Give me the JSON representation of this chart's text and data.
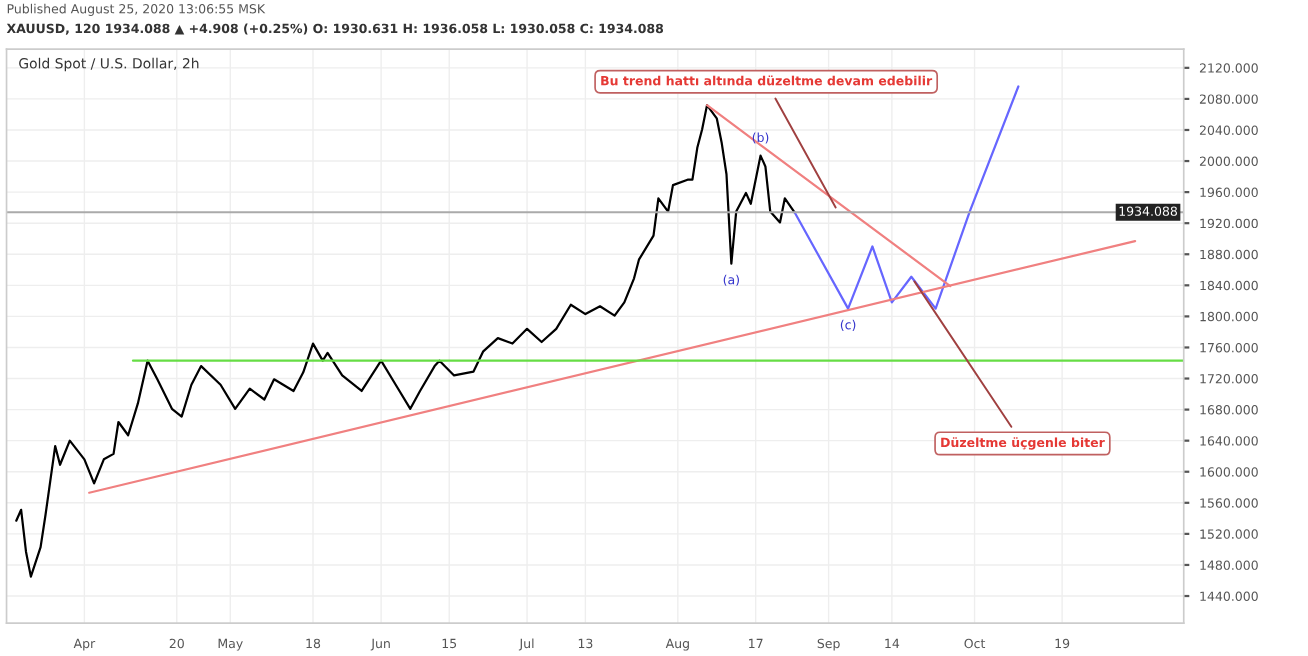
{
  "chart_data": {
    "type": "line",
    "title": "Gold Spot / U.S. Dollar, 2h",
    "subtitle": "XAUUSD, 120 1934.088 ▲ +4.908 (+0.25%) O: 1930.631 H: 1936.058 L: 1930.058 C: 1934.088",
    "annotations": [
      "Published August 25, 2020 13:06:55 MSK",
      {
        "text": "Bu trend hattı altında düzeltme devam edebilir",
        "x": "2020-09-03",
        "y": 1934
      },
      {
        "text": "Düzeltme üçgenle biter",
        "x": "2020-09-18",
        "y": 1851
      },
      {
        "text": "(a)",
        "x": "2020-08-12",
        "y": 1868
      },
      {
        "text": "(b)",
        "x": "2020-08-18",
        "y": 2007
      },
      {
        "text": "(c)",
        "x": "2020-09-05",
        "y": 1810
      }
    ],
    "series": [
      {
        "color": "#000000",
        "x": [
          "2020-03-18",
          "2020-03-19",
          "2020-03-20",
          "2020-03-21",
          "2020-03-23",
          "2020-03-24",
          "2020-03-26",
          "2020-03-27",
          "2020-03-29",
          "2020-04-01",
          "2020-04-03",
          "2020-04-05",
          "2020-04-07",
          "2020-04-08",
          "2020-04-10",
          "2020-04-12",
          "2020-04-14",
          "2020-04-16",
          "2020-04-19",
          "2020-04-21",
          "2020-04-23",
          "2020-04-25",
          "2020-04-29",
          "2020-05-02",
          "2020-05-05",
          "2020-05-08",
          "2020-05-10",
          "2020-05-14",
          "2020-05-16",
          "2020-05-18",
          "2020-05-20",
          "2020-05-21",
          "2020-05-24",
          "2020-05-28",
          "2020-06-01",
          "2020-06-04",
          "2020-06-07",
          "2020-06-09",
          "2020-06-12",
          "2020-06-13",
          "2020-06-16",
          "2020-06-20",
          "2020-06-22",
          "2020-06-25",
          "2020-06-28",
          "2020-07-01",
          "2020-07-04",
          "2020-07-07",
          "2020-07-10",
          "2020-07-13",
          "2020-07-16",
          "2020-07-19",
          "2020-07-21",
          "2020-07-23",
          "2020-07-24",
          "2020-07-27",
          "2020-07-28",
          "2020-07-30",
          "2020-07-31",
          "2020-08-03",
          "2020-08-04",
          "2020-08-05",
          "2020-08-06",
          "2020-08-07",
          "2020-08-09",
          "2020-08-10",
          "2020-08-11",
          "2020-08-12",
          "2020-08-13",
          "2020-08-15",
          "2020-08-16",
          "2020-08-18",
          "2020-08-19",
          "2020-08-20",
          "2020-08-22",
          "2020-08-23",
          "2020-08-25"
        ],
        "values": [
          1537,
          1551,
          1497,
          1465,
          1503,
          1544,
          1633,
          1609,
          1640,
          1616,
          1585,
          1616,
          1623,
          1664,
          1647,
          1688,
          1743,
          1719,
          1681,
          1671,
          1712,
          1736,
          1712,
          1681,
          1707,
          1693,
          1719,
          1704,
          1728,
          1765,
          1743,
          1753,
          1724,
          1704,
          1743,
          1712,
          1681,
          1704,
          1736,
          1743,
          1724,
          1729,
          1755,
          1772,
          1765,
          1784,
          1767,
          1784,
          1815,
          1803,
          1813,
          1801,
          1818,
          1849,
          1873,
          1904,
          1952,
          1935,
          1969,
          1976,
          1976,
          2017,
          2041,
          2072,
          2055,
          2024,
          1983,
          1868,
          1935,
          1959,
          1945,
          2007,
          1993,
          1935,
          1921,
          1952,
          1934
        ]
      },
      {
        "color": "#6666ff",
        "x": [
          "2020-08-25",
          "2020-09-05",
          "2020-09-10",
          "2020-09-14",
          "2020-09-18",
          "2020-09-23",
          "2020-09-30",
          "2020-10-10"
        ],
        "values": [
          1934,
          1810,
          1890,
          1818,
          1851,
          1810,
          1935,
          2096
        ]
      },
      {
        "color": "#f08080",
        "x": [
          "2020-08-07",
          "2020-09-26"
        ],
        "values": [
          2072,
          1839
        ]
      },
      {
        "color": "#f08080",
        "x": [
          "2020-04-02",
          "2020-11-03"
        ],
        "values": [
          1573,
          1897
        ]
      },
      {
        "color": "#66dd44",
        "x": [
          "2020-04-11",
          "2020-11-13"
        ],
        "values": [
          1743,
          1743
        ]
      }
    ],
    "ref_lines": [
      {
        "axis": "y",
        "value": 1934.088,
        "label": "1934.088",
        "color": "#aaaaaa"
      }
    ],
    "xlim": [
      "2020-03-16",
      "2020-11-13"
    ],
    "xticks": [
      {
        "value": "2020-04-01",
        "label": "Apr"
      },
      {
        "value": "2020-04-20",
        "label": "20"
      },
      {
        "value": "2020-05-01",
        "label": "May"
      },
      {
        "value": "2020-05-18",
        "label": "18"
      },
      {
        "value": "2020-06-01",
        "label": "Jun"
      },
      {
        "value": "2020-06-15",
        "label": "15"
      },
      {
        "value": "2020-07-01",
        "label": "Jul"
      },
      {
        "value": "2020-07-13",
        "label": "13"
      },
      {
        "value": "2020-08-01",
        "label": "Aug"
      },
      {
        "value": "2020-08-17",
        "label": "17"
      },
      {
        "value": "2020-09-01",
        "label": "Sep"
      },
      {
        "value": "2020-09-14",
        "label": "14"
      },
      {
        "value": "2020-10-01",
        "label": "Oct"
      },
      {
        "value": "2020-10-19",
        "label": "19"
      }
    ],
    "ylim": [
      1405,
      2144
    ],
    "yticks": [
      {
        "value": 1440,
        "label": "1440.000"
      },
      {
        "value": 1480,
        "label": "1480.000"
      },
      {
        "value": 1520,
        "label": "1520.000"
      },
      {
        "value": 1560,
        "label": "1560.000"
      },
      {
        "value": 1600,
        "label": "1600.000"
      },
      {
        "value": 1640,
        "label": "1640.000"
      },
      {
        "value": 1680,
        "label": "1680.000"
      },
      {
        "value": 1720,
        "label": "1720.000"
      },
      {
        "value": 1760,
        "label": "1760.000"
      },
      {
        "value": 1800,
        "label": "1800.000"
      },
      {
        "value": 1840,
        "label": "1840.000"
      },
      {
        "value": 1880,
        "label": "1880.000"
      },
      {
        "value": 1920,
        "label": "1920.000"
      },
      {
        "value": 1960,
        "label": "1960.000"
      },
      {
        "value": 2000,
        "label": "2000.000"
      },
      {
        "value": 2040,
        "label": "2040.000"
      },
      {
        "value": 2080,
        "label": "2080.000"
      },
      {
        "value": 2120,
        "label": "2120.000"
      }
    ],
    "grid": true,
    "line_style": "solid",
    "marker": "none"
  }
}
